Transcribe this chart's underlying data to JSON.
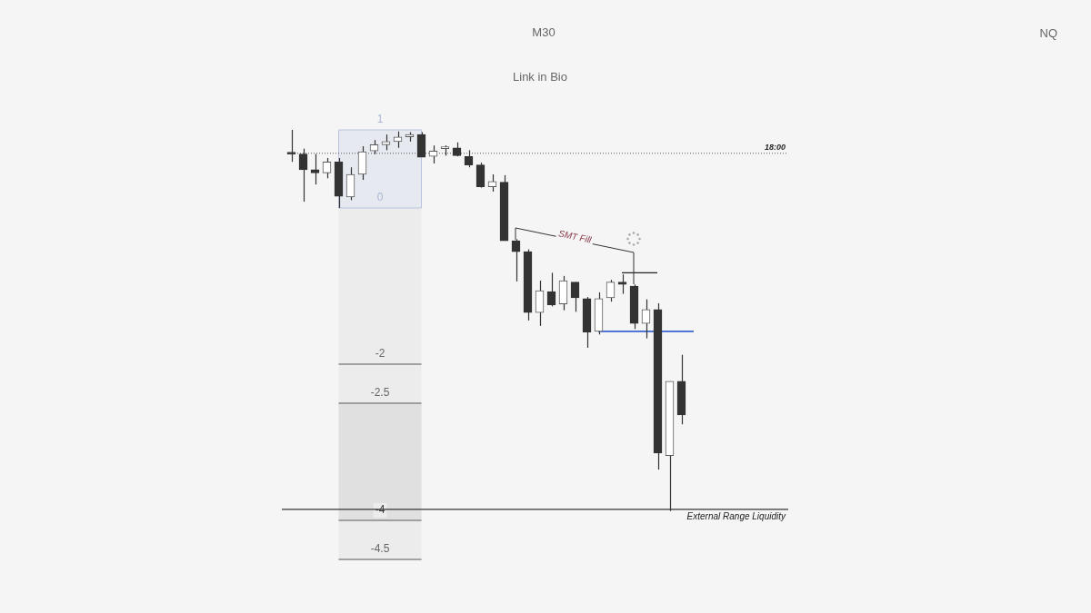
{
  "chart_data": {
    "type": "candlestick",
    "title": "M30",
    "subtitle": "Link in Bio",
    "annotations": [
      "NQ",
      "SMT Fill",
      {
        "text": "18:00",
        "y": 0.7
      }
    ],
    "categories": [
      null,
      null,
      null,
      null,
      null,
      null,
      null,
      null,
      null,
      null,
      null,
      null,
      null,
      null,
      null,
      null,
      null,
      null,
      null,
      null,
      null,
      null,
      null,
      null,
      null,
      null,
      null,
      null,
      null,
      null,
      null,
      null,
      null,
      null
    ],
    "ohlc": [
      [
        0.7,
        1,
        0.59,
        0.69
      ],
      [
        0.69,
        0.76,
        0.08,
        0.49
      ],
      [
        0.49,
        0.69,
        0.3,
        0.45
      ],
      [
        0.45,
        0.64,
        0.38,
        0.59
      ],
      [
        0.59,
        0.64,
        0,
        0.15
      ],
      [
        0.14,
        0.52,
        0.1,
        0.43
      ],
      [
        0.43,
        0.79,
        0.36,
        0.72
      ],
      [
        0.73,
        0.87,
        0.69,
        0.81
      ],
      [
        0.81,
        0.94,
        0.74,
        0.85
      ],
      [
        0.85,
        0.98,
        0.77,
        0.91
      ],
      [
        0.91,
        0.97,
        0.85,
        0.94
      ],
      [
        0.94,
        0.97,
        0.65,
        0.65
      ],
      [
        0.66,
        0.8,
        0.57,
        0.73
      ],
      [
        0.76,
        0.8,
        0.67,
        0.78
      ],
      [
        0.77,
        0.84,
        0.66,
        0.67
      ],
      [
        0.66,
        0.74,
        0.52,
        0.55
      ],
      [
        0.55,
        0.58,
        0.26,
        0.27
      ],
      [
        0.27,
        0.43,
        0.21,
        0.34
      ],
      [
        0.33,
        0.42,
        -0.42,
        -0.42
      ],
      [
        -0.42,
        -0.4,
        -0.94,
        -0.56
      ],
      [
        -0.56,
        -0.53,
        -1.44,
        -1.34
      ],
      [
        -1.34,
        -0.93,
        -1.51,
        -1.06
      ],
      [
        -1.07,
        -0.83,
        -1.26,
        -1.24
      ],
      [
        -1.23,
        -0.87,
        -1.31,
        -0.93
      ],
      [
        -0.95,
        -0.95,
        -1.33,
        -1.15
      ],
      [
        -1.16,
        -1.14,
        -1.79,
        -1.59
      ],
      [
        -1.58,
        -1.08,
        -1.62,
        -1.16
      ],
      [
        -1.15,
        -0.92,
        -1.2,
        -0.95
      ],
      [
        -0.95,
        -0.85,
        -1.1,
        -0.98
      ],
      [
        -1,
        -0.98,
        -1.55,
        -1.48
      ],
      [
        -1.48,
        -1.17,
        -1.67,
        -1.3
      ],
      [
        -1.3,
        -1.22,
        -3.35,
        -3.14
      ],
      [
        -3.17,
        -2.22,
        -3.88,
        -2.22
      ],
      [
        -2.22,
        -1.88,
        -2.77,
        -2.65
      ]
    ],
    "ylim": [
      -4.5,
      1
    ],
    "yticks": [
      1,
      0,
      -2,
      -2.5,
      -4,
      -4.5
    ],
    "tick_labels": "y",
    "legend": false,
    "bands": [
      {
        "axis": "y",
        "from": -4.5,
        "to": 0,
        "color": "#ececec"
      },
      {
        "axis": "y",
        "from": -4,
        "to": -2.5,
        "color": "#e0e0e0"
      },
      {
        "axis": "y",
        "from": 0,
        "to": 1,
        "color": "#e7e9f1"
      }
    ],
    "ref_lines": [
      {
        "axis": "y",
        "value": 0.7,
        "line_style": "dotted",
        "color": "#555555"
      },
      {
        "axis": "y",
        "value": -1.58,
        "color": "#3b63d0"
      },
      {
        "axis": "y",
        "value": -0.83,
        "color": "#222222"
      },
      {
        "axis": "y",
        "value": -3.86,
        "label": "External Range Liquidity",
        "color": "#333333"
      },
      {
        "axis": "y",
        "value": -2,
        "color": "#888888"
      },
      {
        "axis": "y",
        "value": -2.5,
        "color": "#888888"
      },
      {
        "axis": "y",
        "value": -4,
        "color": "#888888"
      },
      {
        "axis": "y",
        "value": -4.5,
        "color": "#888888"
      }
    ]
  }
}
